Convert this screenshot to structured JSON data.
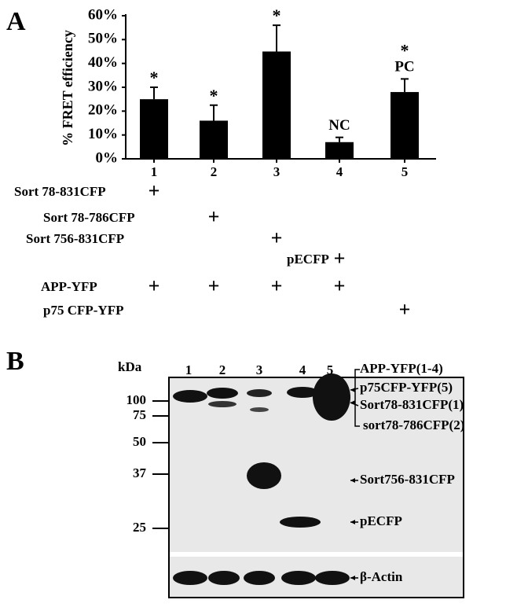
{
  "panel_a": "A",
  "chart_data": {
    "type": "bar",
    "y_label": "% FRET efficiency",
    "categories": [
      "1",
      "2",
      "3",
      "4",
      "5"
    ],
    "values": [
      25,
      16,
      45,
      7,
      28
    ],
    "errors": [
      5,
      6.5,
      11,
      2,
      5.5
    ],
    "bar_labels": [
      [
        "*"
      ],
      [
        "*"
      ],
      [
        "*"
      ],
      [
        "NC"
      ],
      [
        "*",
        "PC"
      ]
    ],
    "color": "#000000",
    "ylim": [
      0,
      60
    ],
    "yticks": [
      {
        "value": 0,
        "label": "0%"
      },
      {
        "value": 10,
        "label": "10%"
      },
      {
        "value": 20,
        "label": "20%"
      },
      {
        "value": 30,
        "label": "30%"
      },
      {
        "value": 40,
        "label": "40%"
      },
      {
        "value": 50,
        "label": "50%"
      },
      {
        "value": 60,
        "label": "60%"
      }
    ]
  },
  "conditions": [
    {
      "label": "Sort 78-831CFP",
      "marks": [
        "+",
        null,
        null,
        null,
        null
      ]
    },
    {
      "label": "Sort 78-786CFP",
      "marks": [
        null,
        "+",
        null,
        null,
        null
      ]
    },
    {
      "label": "Sort 756-831CFP",
      "marks": [
        null,
        null,
        "+",
        null,
        null
      ]
    },
    {
      "label": "pECFP",
      "marks": [
        null,
        null,
        null,
        "+",
        null
      ]
    },
    {
      "label": "APP-YFP",
      "marks": [
        "+",
        "+",
        "+",
        "+",
        null
      ]
    },
    {
      "label": "p75 CFP-YFP",
      "marks": [
        null,
        null,
        null,
        null,
        "+"
      ]
    }
  ],
  "panel_b": "B",
  "blot": {
    "unit": "kDa",
    "lanes": [
      "1",
      "2",
      "3",
      "4",
      "5"
    ],
    "markers": [
      "100",
      "75",
      "50",
      "37",
      "25"
    ],
    "band_labels": [
      "APP-YFP(1-4)",
      "p75CFP-YFP(5)",
      "Sort78-831CFP(1)",
      "sort78-786CFP(2)",
      "Sort756-831CFP",
      "pECFP",
      "β-Actin"
    ]
  }
}
